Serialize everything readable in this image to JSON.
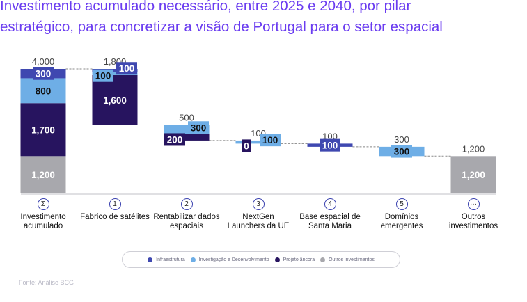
{
  "title": {
    "line1": "Investimento acumulado necessário, entre 2025 e 2040, por pilar",
    "line2": "estratégico, para concretizar a visão de Portugal para o setor espacial"
  },
  "colors": {
    "infraestrutura": "#3f48b0",
    "investigacao": "#6eaee6",
    "projeto": "#27145f",
    "outros": "#a8a8ad",
    "title": "#6a3cf0"
  },
  "chart_data": {
    "type": "bar",
    "subtype": "waterfall",
    "ylim": [
      0,
      4000
    ],
    "categories": [
      {
        "icon": "Σ",
        "label": "Investimento acumulado",
        "total": "4,000",
        "kind": "total"
      },
      {
        "icon": "1",
        "label": "Fabrico de satélites",
        "total": "1,800",
        "kind": "step"
      },
      {
        "icon": "2",
        "label": "Rentabilizar dados espaciais",
        "total": "500",
        "kind": "step"
      },
      {
        "icon": "3",
        "label": "NextGen Launchers da UE",
        "total": "100",
        "kind": "step"
      },
      {
        "icon": "4",
        "label": "Base espacial de Santa Maria",
        "total": "100",
        "kind": "step"
      },
      {
        "icon": "5",
        "label": "Domínios emergentes",
        "total": "300",
        "kind": "step"
      },
      {
        "icon": "···",
        "label": "Outros investimentos",
        "total": "1,200",
        "kind": "total"
      }
    ],
    "series": [
      {
        "name": "Outros investimentos",
        "key": "outros",
        "values": [
          1200,
          0,
          0,
          0,
          0,
          0,
          1200
        ],
        "labels": [
          "1,200",
          null,
          null,
          null,
          null,
          null,
          "1,200"
        ]
      },
      {
        "name": "Projeto âncora",
        "key": "projeto",
        "values": [
          1700,
          1600,
          200,
          0,
          0,
          0,
          0
        ],
        "labels": [
          "1,700",
          "1,600",
          "200",
          "0",
          null,
          null,
          null
        ]
      },
      {
        "name": "Investigação e Desenvolvimento",
        "key": "investigacao",
        "values": [
          800,
          100,
          300,
          100,
          0,
          300,
          0
        ],
        "labels": [
          "800",
          "100",
          "300",
          "100",
          null,
          "300",
          null
        ]
      },
      {
        "name": "Infraestrutura",
        "key": "infraestrutura",
        "values": [
          300,
          100,
          0,
          0,
          100,
          0,
          0
        ],
        "labels": [
          "300",
          "100",
          null,
          null,
          "100",
          null,
          null
        ]
      }
    ]
  },
  "legend": [
    {
      "label": "Infraestrutura",
      "key": "infraestrutura"
    },
    {
      "label": "Investigação e Desenvolvimento",
      "key": "investigacao"
    },
    {
      "label": "Projeto âncora",
      "key": "projeto"
    },
    {
      "label": "Outros investimentos",
      "key": "outros"
    }
  ],
  "source": "Fonte: Análise BCG"
}
